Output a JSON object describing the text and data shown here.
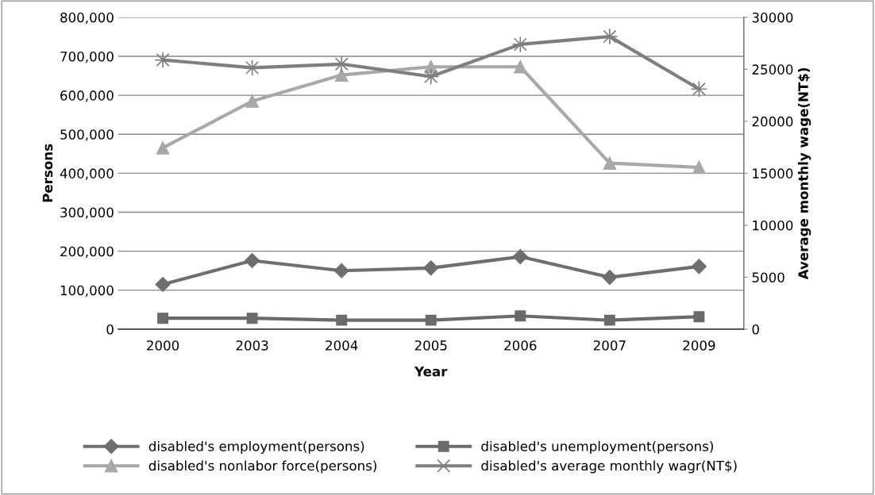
{
  "chart_data": {
    "type": "line",
    "xlabel": "Year",
    "ylabel": "Persons",
    "y2label": "Average monthly wage(NT$)",
    "categories": [
      "2000",
      "2003",
      "2004",
      "2005",
      "2006",
      "2007",
      "2009"
    ],
    "series": [
      {
        "name": "disabled's employment(persons)",
        "color": "#6e6e6e",
        "marker": "diamond",
        "values": [
          115000,
          176000,
          150000,
          157000,
          186000,
          133000,
          161000
        ]
      },
      {
        "name": "disabled's unemployment(persons)",
        "color": "#6a6a6a",
        "marker": "square",
        "values": [
          28000,
          28000,
          23000,
          23000,
          34000,
          23000,
          32000
        ]
      },
      {
        "name": "disabled's nonlabor force(persons)",
        "color": "#a8a8a8",
        "marker": "triangle",
        "values": [
          465000,
          585000,
          652000,
          673000,
          673000,
          426000,
          415000
        ]
      },
      {
        "name": "disabled's average monthly wagr(NT$)",
        "color": "#7f7f7f",
        "marker": "cross",
        "axis": "y2",
        "values": [
          25900,
          25150,
          25500,
          24300,
          27400,
          28150,
          23100
        ]
      }
    ],
    "ylim": [
      0,
      800000
    ],
    "yticks": [
      {
        "value": 0,
        "label": "0"
      },
      {
        "value": 100000,
        "label": "100,000"
      },
      {
        "value": 200000,
        "label": "200,000"
      },
      {
        "value": 300000,
        "label": "300,000"
      },
      {
        "value": 400000,
        "label": "400,000"
      },
      {
        "value": 500000,
        "label": "500,000"
      },
      {
        "value": 600000,
        "label": "600,000"
      },
      {
        "value": 700000,
        "label": "700,000"
      },
      {
        "value": 800000,
        "label": "800,000"
      }
    ],
    "y2lim": [
      0,
      30000
    ],
    "y2ticks": [
      0,
      5000,
      10000,
      15000,
      20000,
      25000,
      30000
    ],
    "grid": "y",
    "legend": "bottom"
  }
}
